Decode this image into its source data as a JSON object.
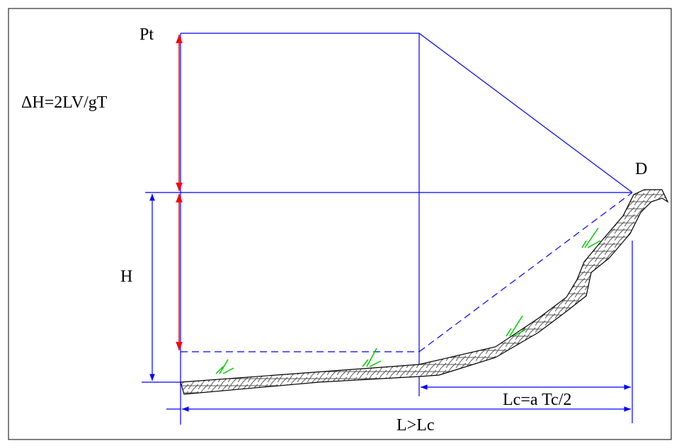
{
  "labels": {
    "pt": "Pt",
    "delta_h": "ΔH=2LV/gT",
    "d": "D",
    "h": "H",
    "lc": "Lc=a Tc/2",
    "l": "L>Lc"
  }
}
